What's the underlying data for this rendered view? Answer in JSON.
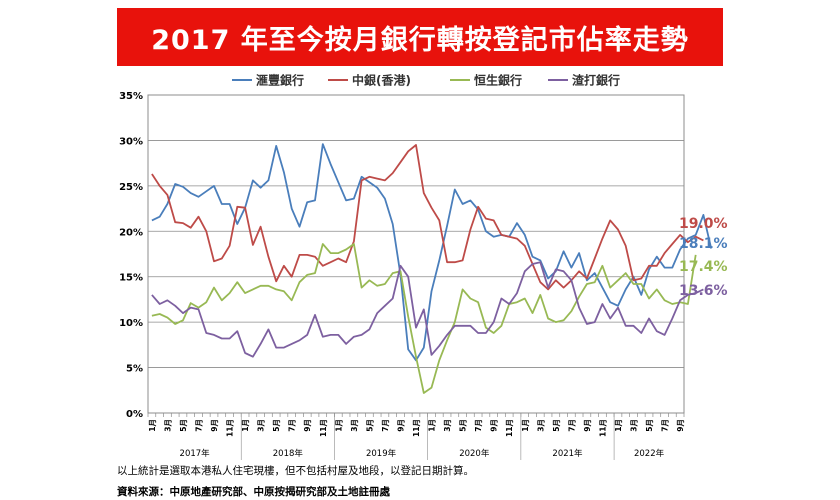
{
  "title": "2017 年至今按月銀行轉按登記市佔率走勢",
  "colors": {
    "title_bg": "#e8120c",
    "hsbc": "#4a7ebb",
    "boc": "#be4b48",
    "hang_seng": "#98b954",
    "sc": "#7d60a0",
    "grid": "#8c8c8c"
  },
  "chart_data": {
    "type": "line",
    "ylim": [
      0,
      35
    ],
    "yticks": [
      "0%",
      "5%",
      "10%",
      "15%",
      "20%",
      "25%",
      "30%",
      "35%"
    ],
    "grid": true,
    "legend_position": "top",
    "month_ticks": [
      "1月",
      "3月",
      "5月",
      "7月",
      "9月",
      "11月",
      "1月",
      "3月",
      "5月",
      "7月",
      "9月",
      "11月",
      "1月",
      "3月",
      "5月",
      "7月",
      "9月",
      "11月",
      "1月",
      "3月",
      "5月",
      "7月",
      "9月",
      "11月",
      "1月",
      "3月",
      "5月",
      "7月",
      "9月",
      "11月",
      "1月",
      "3月",
      "5月",
      "7月",
      "9月"
    ],
    "year_labels": [
      "2017年",
      "2018年",
      "2019年",
      "2020年",
      "2021年",
      "2022年"
    ],
    "series": [
      {
        "name": "滙豐銀行",
        "color_key": "hsbc",
        "end_label": "18.1%",
        "values": [
          21.2,
          21.6,
          23.0,
          25.2,
          24.9,
          24.2,
          23.8,
          24.4,
          25.0,
          23.0,
          23.0,
          20.8,
          22.6,
          25.6,
          24.8,
          25.6,
          29.4,
          26.5,
          22.5,
          20.5,
          23.2,
          23.4,
          29.6,
          27.4,
          25.4,
          23.4,
          23.6,
          26.0,
          25.4,
          24.8,
          23.6,
          20.8,
          15.2,
          7.0,
          5.8,
          7.2,
          13.4,
          16.8,
          20.6,
          24.6,
          23.0,
          23.4,
          22.4,
          20.0,
          19.4,
          19.6,
          19.4,
          20.9,
          19.6,
          17.2,
          16.8,
          14.8,
          15.6,
          17.8,
          16.0,
          17.6,
          14.6,
          15.4,
          13.8,
          12.2,
          11.8,
          13.6,
          15.0,
          13.0,
          15.8,
          17.2,
          16.0,
          16.0,
          18.0,
          19.2,
          19.6,
          21.8,
          18.1
        ]
      },
      {
        "name": "中銀(香港)",
        "color_key": "boc",
        "end_label": "19.0%",
        "values": [
          26.3,
          25.0,
          24.0,
          21.0,
          20.9,
          20.4,
          21.6,
          20.0,
          16.7,
          17.0,
          18.4,
          22.7,
          22.6,
          18.5,
          20.5,
          17.2,
          14.5,
          16.2,
          15.0,
          17.4,
          17.4,
          17.2,
          16.2,
          16.6,
          17.0,
          16.6,
          18.9,
          25.6,
          26.0,
          25.8,
          25.6,
          26.4,
          27.6,
          28.8,
          29.5,
          24.2,
          22.6,
          21.2,
          16.6,
          16.6,
          16.8,
          20.2,
          22.7,
          21.4,
          21.2,
          19.6,
          19.4,
          19.2,
          18.4,
          16.4,
          14.4,
          13.6,
          14.6,
          13.8,
          14.6,
          15.6,
          14.8,
          17.0,
          19.2,
          21.2,
          20.2,
          18.4,
          14.6,
          14.8,
          16.2,
          16.2,
          17.6,
          18.6,
          19.6,
          18.8,
          19.4,
          19.0
        ]
      },
      {
        "name": "恒生銀行",
        "color_key": "hang_seng",
        "end_label": "17.4%",
        "values": [
          10.7,
          10.9,
          10.5,
          9.8,
          10.2,
          12.1,
          11.6,
          12.2,
          13.8,
          12.4,
          13.2,
          14.4,
          13.2,
          13.6,
          14.0,
          14.0,
          13.6,
          13.4,
          12.4,
          14.4,
          15.2,
          15.4,
          18.6,
          17.6,
          17.6,
          18.0,
          18.6,
          13.8,
          14.6,
          14.0,
          14.2,
          15.4,
          15.6,
          10.6,
          6.2,
          2.2,
          2.8,
          5.8,
          8.0,
          10.0,
          13.6,
          12.6,
          12.2,
          9.4,
          8.8,
          9.6,
          12.0,
          12.2,
          12.6,
          11.0,
          13.0,
          10.4,
          10.0,
          10.2,
          11.2,
          12.8,
          14.2,
          14.4,
          16.2,
          13.8,
          14.6,
          15.4,
          14.2,
          14.2,
          12.6,
          13.6,
          12.4,
          12.0,
          12.2,
          12.0,
          17.4
        ]
      },
      {
        "name": "渣打銀行",
        "color_key": "sc",
        "end_label": "13.6%",
        "values": [
          13.0,
          12.0,
          12.4,
          11.8,
          11.0,
          11.6,
          11.4,
          8.8,
          8.6,
          8.2,
          8.2,
          9.0,
          6.6,
          6.2,
          7.6,
          9.2,
          7.2,
          7.2,
          7.6,
          8.0,
          8.6,
          10.8,
          8.4,
          8.6,
          8.6,
          7.6,
          8.4,
          8.6,
          9.2,
          11.0,
          11.8,
          12.6,
          16.2,
          15.0,
          9.4,
          11.4,
          6.4,
          7.4,
          8.6,
          9.6,
          9.6,
          9.6,
          8.8,
          8.8,
          10.0,
          12.6,
          12.0,
          13.2,
          15.6,
          16.4,
          16.6,
          13.8,
          15.8,
          15.6,
          14.6,
          11.6,
          9.8,
          10.0,
          12.0,
          10.4,
          11.6,
          9.6,
          9.6,
          8.8,
          10.4,
          9.0,
          8.6,
          10.4,
          12.4,
          13.0,
          13.2,
          13.6
        ]
      }
    ]
  },
  "footnotes": {
    "note": "以上統計是選取本港私人住宅現樓，但不包括村屋及地段，以登記日期計算。",
    "source": "資料來源：中原地產研究部、中原按揭研究部及土地註冊處"
  }
}
